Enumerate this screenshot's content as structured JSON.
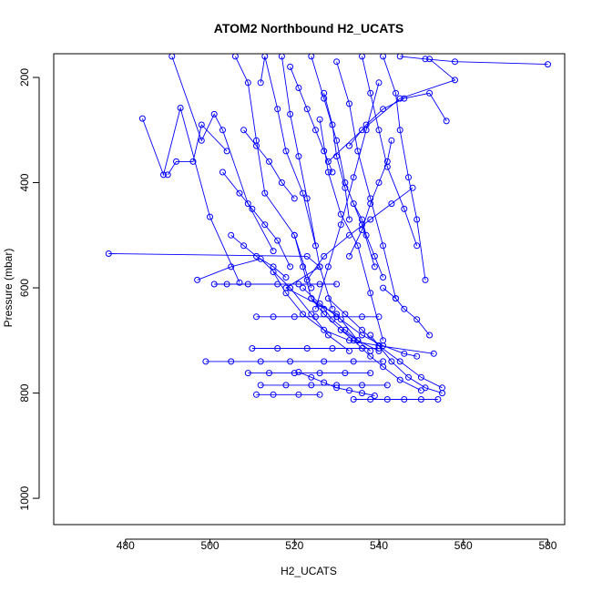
{
  "chart_data": {
    "type": "scatter",
    "title": "ATOM2 Northbound H2_UCATS",
    "xlabel": "H2_UCATS",
    "ylabel": "Pressure (mbar)",
    "xlim": [
      463,
      584
    ],
    "ylim": [
      1050,
      155
    ],
    "y_inverted": true,
    "x_ticks": [
      480,
      500,
      520,
      540,
      560,
      580
    ],
    "y_ticks": [
      200,
      400,
      600,
      800,
      1000
    ],
    "grid": false,
    "style": "points-and-lines",
    "color": "#0000ff",
    "profiles": [
      {
        "x": [
          476,
          523,
          526,
          518,
          530,
          535
        ],
        "y": [
          535,
          540,
          560,
          600,
          650,
          700
        ]
      },
      {
        "x": [
          497,
          505,
          512,
          519,
          524,
          528,
          533
        ],
        "y": [
          585,
          560,
          545,
          600,
          650,
          690,
          720
        ]
      },
      {
        "x": [
          501,
          504,
          509,
          516,
          521,
          526,
          530
        ],
        "y": [
          593,
          593,
          593,
          593,
          593,
          593,
          593
        ]
      },
      {
        "x": [
          511,
          515,
          520,
          525,
          530,
          536,
          540
        ],
        "y": [
          655,
          655,
          655,
          655,
          655,
          655,
          655
        ]
      },
      {
        "x": [
          510,
          516,
          523,
          529,
          536,
          540
        ],
        "y": [
          715,
          715,
          715,
          715,
          715,
          715
        ]
      },
      {
        "x": [
          499,
          505,
          512,
          519,
          527,
          534,
          541
        ],
        "y": [
          740,
          740,
          740,
          740,
          740,
          740,
          740
        ]
      },
      {
        "x": [
          509,
          514,
          520,
          526,
          532,
          538
        ],
        "y": [
          762,
          762,
          762,
          762,
          762,
          762
        ]
      },
      {
        "x": [
          512,
          518,
          524,
          530,
          536,
          542
        ],
        "y": [
          785,
          785,
          785,
          785,
          785,
          785
        ]
      },
      {
        "x": [
          511,
          515,
          521,
          526
        ],
        "y": [
          803,
          803,
          803,
          803
        ]
      },
      {
        "x": [
          534,
          538,
          542,
          546,
          550,
          554
        ],
        "y": [
          812,
          812,
          812,
          812,
          812,
          812
        ]
      },
      {
        "x": [
          484,
          489,
          493,
          500,
          507
        ],
        "y": [
          278,
          385,
          258,
          465,
          590
        ]
      },
      {
        "x": [
          490,
          492,
          496,
          498,
          504
        ],
        "y": [
          385,
          360,
          360,
          290,
          340
        ]
      },
      {
        "x": [
          491,
          498,
          501,
          503,
          509,
          515
        ],
        "y": [
          160,
          320,
          270,
          300,
          440,
          530
        ]
      },
      {
        "x": [
          506,
          509,
          511,
          513,
          520,
          524
        ],
        "y": [
          160,
          210,
          320,
          420,
          500,
          600
        ]
      },
      {
        "x": [
          512,
          513,
          516,
          518,
          522,
          525
        ],
        "y": [
          210,
          160,
          260,
          340,
          420,
          520
        ]
      },
      {
        "x": [
          517,
          519,
          521,
          523,
          526,
          529
        ],
        "y": [
          160,
          270,
          350,
          430,
          560,
          640
        ]
      },
      {
        "x": [
          524,
          527,
          530,
          532,
          536,
          539
        ],
        "y": [
          160,
          240,
          320,
          400,
          480,
          560
        ]
      },
      {
        "x": [
          526,
          528,
          531,
          535,
          538,
          541
        ],
        "y": [
          280,
          380,
          460,
          520,
          610,
          700
        ]
      },
      {
        "x": [
          530,
          533,
          535,
          538,
          541,
          544
        ],
        "y": [
          170,
          250,
          340,
          430,
          520,
          620
        ]
      },
      {
        "x": [
          536,
          538,
          540,
          542,
          546,
          549
        ],
        "y": [
          160,
          230,
          300,
          370,
          450,
          520
        ]
      },
      {
        "x": [
          541,
          544,
          545,
          547,
          549,
          551
        ],
        "y": [
          160,
          230,
          300,
          390,
          470,
          585
        ]
      },
      {
        "x": [
          533,
          537,
          541,
          546,
          552,
          556
        ],
        "y": [
          330,
          290,
          260,
          240,
          230,
          283
        ]
      },
      {
        "x": [
          545,
          551,
          558,
          580
        ],
        "y": [
          160,
          165,
          170,
          175
        ]
      },
      {
        "x": [
          552,
          558,
          545,
          536,
          528
        ],
        "y": [
          165,
          205,
          240,
          300,
          360
        ]
      },
      {
        "x": [
          548,
          543,
          538,
          533,
          527,
          523
        ],
        "y": [
          410,
          440,
          470,
          500,
          540,
          585
        ]
      },
      {
        "x": [
          540,
          537,
          534,
          531,
          528,
          525
        ],
        "y": [
          210,
          300,
          390,
          480,
          560,
          640
        ]
      },
      {
        "x": [
          520,
          522,
          524,
          527,
          531,
          535,
          540
        ],
        "y": [
          500,
          560,
          620,
          650,
          680,
          700,
          720
        ]
      },
      {
        "x": [
          515,
          518,
          522,
          527,
          533,
          540,
          553
        ],
        "y": [
          570,
          610,
          650,
          680,
          700,
          710,
          725
        ]
      },
      {
        "x": [
          522,
          526,
          531,
          536,
          541,
          546,
          549
        ],
        "y": [
          600,
          630,
          660,
          690,
          710,
          725,
          730
        ]
      },
      {
        "x": [
          528,
          532,
          536,
          540,
          545,
          550,
          555
        ],
        "y": [
          620,
          650,
          680,
          710,
          740,
          770,
          790
        ]
      },
      {
        "x": [
          531,
          534,
          538,
          541,
          545,
          550
        ],
        "y": [
          680,
          700,
          730,
          750,
          775,
          795
        ]
      },
      {
        "x": [
          538,
          540,
          543,
          547,
          551,
          555
        ],
        "y": [
          690,
          710,
          740,
          770,
          790,
          800
        ]
      },
      {
        "x": [
          541,
          544,
          546,
          549,
          552
        ],
        "y": [
          600,
          620,
          640,
          660,
          690
        ]
      },
      {
        "x": [
          505,
          508,
          511,
          515,
          518
        ],
        "y": [
          500,
          520,
          540,
          560,
          580
        ]
      },
      {
        "x": [
          503,
          507,
          510,
          513,
          516,
          519
        ],
        "y": [
          380,
          420,
          450,
          480,
          510,
          560
        ]
      },
      {
        "x": [
          508,
          511,
          514,
          517,
          520
        ],
        "y": [
          300,
          330,
          360,
          400,
          430
        ]
      },
      {
        "x": [
          519,
          521,
          523,
          525,
          527,
          529
        ],
        "y": [
          180,
          220,
          260,
          300,
          340,
          380
        ]
      },
      {
        "x": [
          527,
          529,
          530,
          532,
          533
        ],
        "y": [
          230,
          290,
          350,
          410,
          470
        ]
      },
      {
        "x": [
          534,
          536,
          537,
          539,
          541
        ],
        "y": [
          440,
          470,
          500,
          540,
          580
        ]
      },
      {
        "x": [
          543,
          542,
          540,
          538,
          536,
          533
        ],
        "y": [
          320,
          360,
          400,
          440,
          490,
          540
        ]
      },
      {
        "x": [
          521,
          524,
          527,
          530,
          533,
          536,
          539
        ],
        "y": [
          760,
          770,
          780,
          790,
          795,
          800,
          805
        ]
      },
      {
        "x": [
          524,
          527,
          529,
          532,
          535,
          538
        ],
        "y": [
          620,
          640,
          660,
          680,
          700,
          720
        ]
      }
    ]
  }
}
